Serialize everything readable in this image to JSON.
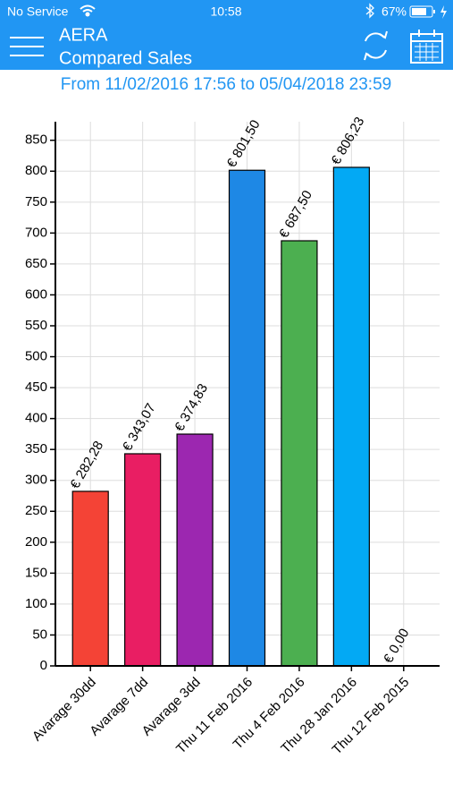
{
  "status": {
    "carrier": "No Service",
    "time": "10:58",
    "battery": "67%"
  },
  "header": {
    "app": "AERA",
    "title": "Compared Sales"
  },
  "chart_data": {
    "type": "bar",
    "subtitle": "From 11/02/2016 17:56 to 05/04/2018 23:59",
    "categories": [
      "Avarage 30dd",
      "Avarage 7dd",
      "Avarage 3dd",
      "Thu 11 Feb 2016",
      "Thu 4 Feb 2016",
      "Thu 28 Jan 2016",
      "Thu 12 Feb 2015"
    ],
    "values": [
      282.28,
      343.07,
      374.83,
      801.5,
      687.5,
      806.23,
      0
    ],
    "value_labels": [
      "€ 282,28",
      "€ 343,07",
      "€ 374,83",
      "€ 801,50",
      "€ 687,50",
      "€ 806,23",
      "€ 0,00"
    ],
    "colors": [
      "#f44336",
      "#e91e63",
      "#9c27b0",
      "#1e88e5",
      "#4caf50",
      "#03a9f4",
      "#ffc107"
    ],
    "ylim": [
      0,
      880
    ],
    "yticks": [
      0,
      50,
      100,
      150,
      200,
      250,
      300,
      350,
      400,
      450,
      500,
      550,
      600,
      650,
      700,
      750,
      800,
      850
    ],
    "grid": true
  }
}
